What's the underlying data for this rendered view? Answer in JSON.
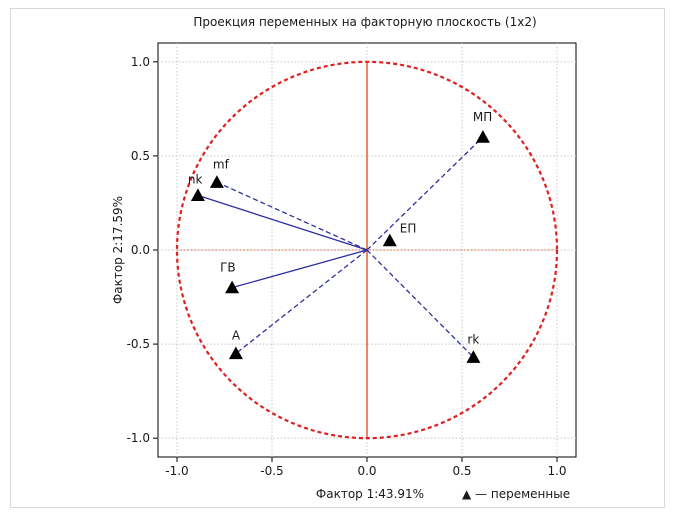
{
  "chart_data": {
    "type": "scatter",
    "title": "Проекция переменных на факторную плоскость (1х2)",
    "xlabel": "Фактор 1:43.91%",
    "ylabel": "Фактор 2:17.59%",
    "xlim": [
      -1.1,
      1.1
    ],
    "ylim": [
      -1.1,
      1.1
    ],
    "x_ticks": [
      "-1.0",
      "-0.5",
      "0.0",
      "0.5",
      "1.0"
    ],
    "y_ticks": [
      "1.0",
      "0.5",
      "0.0",
      "-0.5",
      "-1.0"
    ],
    "grid": true,
    "unit_circle": true,
    "legend": "▲ — переменные",
    "points": [
      {
        "label": "МП",
        "x": 0.61,
        "y": 0.6,
        "line": "dashed"
      },
      {
        "label": "mf",
        "x": -0.79,
        "y": 0.36,
        "line": "dashed"
      },
      {
        "label": "nk",
        "x": -0.89,
        "y": 0.29,
        "line": "solid"
      },
      {
        "label": "ЕП",
        "x": 0.12,
        "y": 0.05,
        "line": "none"
      },
      {
        "label": "ГВ",
        "x": -0.71,
        "y": -0.2,
        "line": "solid"
      },
      {
        "label": "A",
        "x": -0.69,
        "y": -0.55,
        "line": "dashed"
      },
      {
        "label": "rk",
        "x": 0.56,
        "y": -0.57,
        "line": "dashed"
      }
    ],
    "colors": {
      "circle": "#e02020",
      "axis": "#e06a3a",
      "vector": "#2f2fa0",
      "grid": "#c8c8c8",
      "marker": "#000000"
    }
  }
}
